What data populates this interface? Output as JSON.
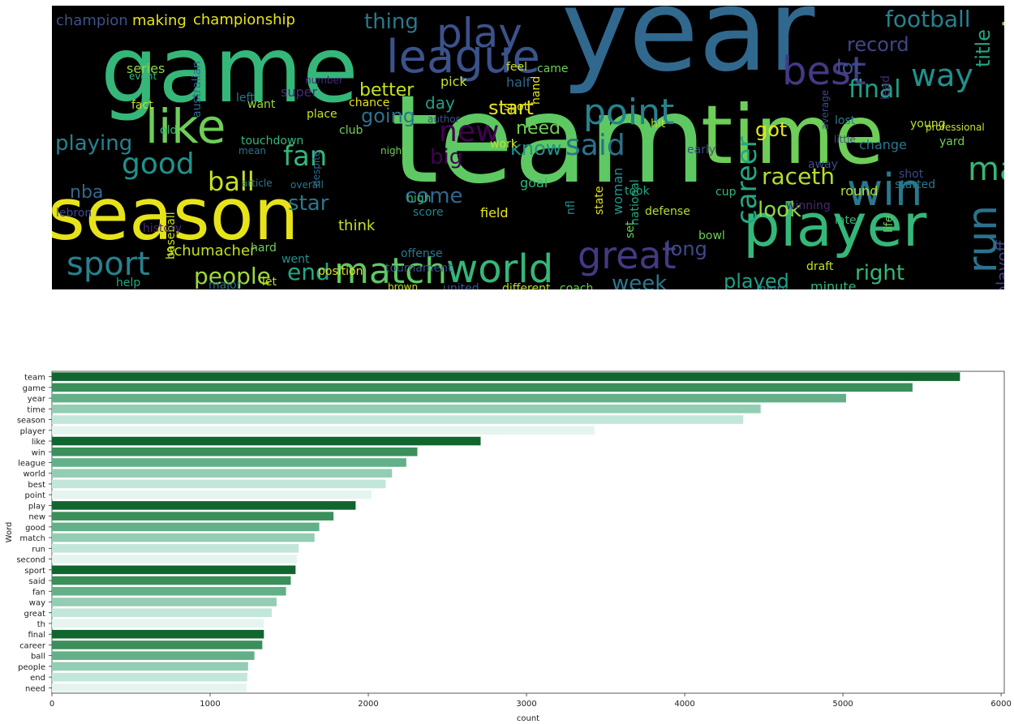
{
  "wordcloud": {
    "words": [
      {
        "text": "team",
        "color": "#5ec962"
      },
      {
        "text": "year",
        "color": "#31688e"
      },
      {
        "text": "game",
        "color": "#35b779"
      },
      {
        "text": "time",
        "color": "#6ece58"
      },
      {
        "text": "season",
        "color": "#e6e419"
      },
      {
        "text": "player",
        "color": "#35b779"
      },
      {
        "text": "point",
        "color": "#26828e"
      },
      {
        "text": "league",
        "color": "#3b528b"
      },
      {
        "text": "like",
        "color": "#6ece58"
      },
      {
        "text": "best",
        "color": "#443983"
      },
      {
        "text": "world",
        "color": "#35b779"
      },
      {
        "text": "match",
        "color": "#5ec962"
      },
      {
        "text": "sport",
        "color": "#26828e"
      },
      {
        "text": "win",
        "color": "#2a788e"
      },
      {
        "text": "play",
        "color": "#3b528b"
      },
      {
        "text": "good",
        "color": "#21918c"
      },
      {
        "text": "new",
        "color": "#440154"
      },
      {
        "text": "said",
        "color": "#2c728e"
      },
      {
        "text": "football",
        "color": "#26828e"
      },
      {
        "text": "great",
        "color": "#443983"
      },
      {
        "text": "second",
        "color": "#90d743"
      },
      {
        "text": "career",
        "color": "#22a884"
      },
      {
        "text": "people",
        "color": "#a0da39"
      },
      {
        "text": "fan",
        "color": "#35b779"
      },
      {
        "text": "ball",
        "color": "#c8e020"
      },
      {
        "text": "playing",
        "color": "#26828e"
      },
      {
        "text": "way",
        "color": "#21918c"
      },
      {
        "text": "run",
        "color": "#2c728e"
      },
      {
        "text": "final",
        "color": "#1fa187"
      },
      {
        "text": "raceth",
        "color": "#b5de2b"
      },
      {
        "text": "end",
        "color": "#22a884"
      },
      {
        "text": "record",
        "color": "#404688"
      },
      {
        "text": "week",
        "color": "#2a788e"
      },
      {
        "text": "look",
        "color": "#90d743"
      },
      {
        "text": "long",
        "color": "#3e4a89"
      },
      {
        "text": "right",
        "color": "#35b779"
      },
      {
        "text": "played",
        "color": "#1fa187"
      },
      {
        "text": "star",
        "color": "#2a788e"
      },
      {
        "text": "come",
        "color": "#31688e"
      },
      {
        "text": "start",
        "color": "#e6e419"
      },
      {
        "text": "going",
        "color": "#2c728e"
      },
      {
        "text": "know",
        "color": "#21918c"
      },
      {
        "text": "need",
        "color": "#6ece58"
      },
      {
        "text": "lot",
        "color": "#3b528b"
      },
      {
        "text": "nba",
        "color": "#31688e"
      },
      {
        "text": "thing",
        "color": "#2a788e"
      },
      {
        "text": "better",
        "color": "#c8e020"
      },
      {
        "text": "big",
        "color": "#440154"
      },
      {
        "text": "day",
        "color": "#1fa187"
      },
      {
        "text": "got",
        "color": "#e6e419"
      },
      {
        "text": "title",
        "color": "#22a884"
      },
      {
        "text": "playoff",
        "color": "#404688"
      },
      {
        "text": "championship",
        "color": "#e6e419"
      },
      {
        "text": "champion",
        "color": "#3b528b"
      },
      {
        "text": "making",
        "color": "#e6e419"
      },
      {
        "text": "match",
        "color": "#35b779"
      },
      {
        "text": "schumacher",
        "color": "#c8e020"
      },
      {
        "text": "united",
        "color": "#3b528b"
      },
      {
        "text": "different",
        "color": "#b5de2b"
      },
      {
        "text": "coach",
        "color": "#6ece58"
      },
      {
        "text": "position",
        "color": "#e6e419"
      },
      {
        "text": "baseball",
        "color": "#c8e020"
      },
      {
        "text": "history",
        "color": "#482878"
      },
      {
        "text": "lebron",
        "color": "#3e4a89"
      },
      {
        "text": "series",
        "color": "#90d743"
      },
      {
        "text": "super",
        "color": "#482878"
      },
      {
        "text": "think",
        "color": "#c8e020"
      },
      {
        "text": "field",
        "color": "#e6e419"
      },
      {
        "text": "high",
        "color": "#35b779"
      },
      {
        "text": "score",
        "color": "#26828e"
      },
      {
        "text": "goal",
        "color": "#35b779"
      },
      {
        "text": "nfl",
        "color": "#21918c"
      },
      {
        "text": "round",
        "color": "#b5de2b"
      },
      {
        "text": "yard",
        "color": "#6ece58"
      },
      {
        "text": "shot",
        "color": "#3e4a89"
      },
      {
        "text": "change",
        "color": "#2a788e"
      },
      {
        "text": "hit",
        "color": "#b5de2b"
      },
      {
        "text": "took",
        "color": "#22a884"
      },
      {
        "text": "defense",
        "color": "#b5de2b"
      },
      {
        "text": "pick",
        "color": "#c8e020"
      },
      {
        "text": "half",
        "color": "#31688e"
      },
      {
        "text": "state",
        "color": "#e6e419"
      },
      {
        "text": "feel",
        "color": "#c8e020"
      },
      {
        "text": "work",
        "color": "#c8e020"
      },
      {
        "text": "spot",
        "color": "#e6e419"
      },
      {
        "text": "hand",
        "color": "#e6e419"
      },
      {
        "text": "came",
        "color": "#6ece58"
      },
      {
        "text": "minute",
        "color": "#35b779"
      },
      {
        "text": "injury",
        "color": "#26828e"
      },
      {
        "text": "bowl",
        "color": "#6ece58"
      },
      {
        "text": "tournament",
        "color": "#3b528b"
      },
      {
        "text": "offense",
        "color": "#2a788e"
      },
      {
        "text": "help",
        "color": "#22a884"
      },
      {
        "text": "let",
        "color": "#c8e020"
      },
      {
        "text": "major",
        "color": "#2c728e"
      },
      {
        "text": "went",
        "color": "#21918c"
      },
      {
        "text": "hard",
        "color": "#6ece58"
      },
      {
        "text": "place",
        "color": "#c8e020"
      },
      {
        "text": "chance",
        "color": "#e6e419"
      },
      {
        "text": "author",
        "color": "#3b528b"
      },
      {
        "text": "club",
        "color": "#6ece58"
      },
      {
        "text": "night",
        "color": "#6ece58"
      },
      {
        "text": "left",
        "color": "#2a788e"
      },
      {
        "text": "number",
        "color": "#482878"
      },
      {
        "text": "fact",
        "color": "#c8e020"
      },
      {
        "text": "old",
        "color": "#35b779"
      },
      {
        "text": "want",
        "color": "#a0da39"
      },
      {
        "text": "mean",
        "color": "#2c728e"
      },
      {
        "text": "touchdown",
        "color": "#35b779"
      },
      {
        "text": "article",
        "color": "#2a788e"
      },
      {
        "text": "despite",
        "color": "#31688e"
      },
      {
        "text": "overall",
        "color": "#2a788e"
      },
      {
        "text": "australian",
        "color": "#31688e"
      },
      {
        "text": "event",
        "color": "#35b779"
      },
      {
        "text": "woman",
        "color": "#21918c"
      },
      {
        "text": "national",
        "color": "#22a884"
      },
      {
        "text": "cup",
        "color": "#35b779"
      },
      {
        "text": "early",
        "color": "#3b528b"
      },
      {
        "text": "draft",
        "color": "#c8e020"
      },
      {
        "text": "away",
        "color": "#3e4a89"
      },
      {
        "text": "later",
        "color": "#35b779"
      },
      {
        "text": "young",
        "color": "#b5de2b"
      },
      {
        "text": "little",
        "color": "#3b528b"
      },
      {
        "text": "lost",
        "color": "#2a788e"
      },
      {
        "text": "average",
        "color": "#3e4a89"
      },
      {
        "text": "started",
        "color": "#2a788e"
      },
      {
        "text": "set",
        "color": "#6ece58"
      },
      {
        "text": "winning",
        "color": "#482878"
      },
      {
        "text": "lead",
        "color": "#482878"
      },
      {
        "text": "professional",
        "color": "#c8e020"
      },
      {
        "text": "life",
        "color": "#6ece58"
      },
      {
        "text": "brown",
        "color": "#c8e020"
      }
    ]
  },
  "chart_data": {
    "type": "bar",
    "orientation": "horizontal",
    "categories": [
      "team",
      "game",
      "year",
      "time",
      "season",
      "player",
      "like",
      "win",
      "league",
      "world",
      "best",
      "point",
      "play",
      "new",
      "good",
      "match",
      "run",
      "second",
      "sport",
      "said",
      "fan",
      "way",
      "great",
      "th",
      "final",
      "career",
      "ball",
      "people",
      "end",
      "need"
    ],
    "values": [
      5740,
      5440,
      5020,
      4480,
      4370,
      3430,
      2710,
      2310,
      2240,
      2150,
      2110,
      2020,
      1920,
      1780,
      1690,
      1660,
      1560,
      1550,
      1540,
      1510,
      1480,
      1420,
      1390,
      1340,
      1340,
      1330,
      1280,
      1240,
      1235,
      1230
    ],
    "colors": [
      "#11652e",
      "#3a8f5a",
      "#63b088",
      "#93cdb3",
      "#c2e6da",
      "#e5f4ef"
    ],
    "xlabel": "count",
    "ylabel": "Word",
    "xticks": [
      0,
      1000,
      2000,
      3000,
      4000,
      5000,
      6000
    ],
    "xlim": [
      0,
      6020
    ]
  }
}
